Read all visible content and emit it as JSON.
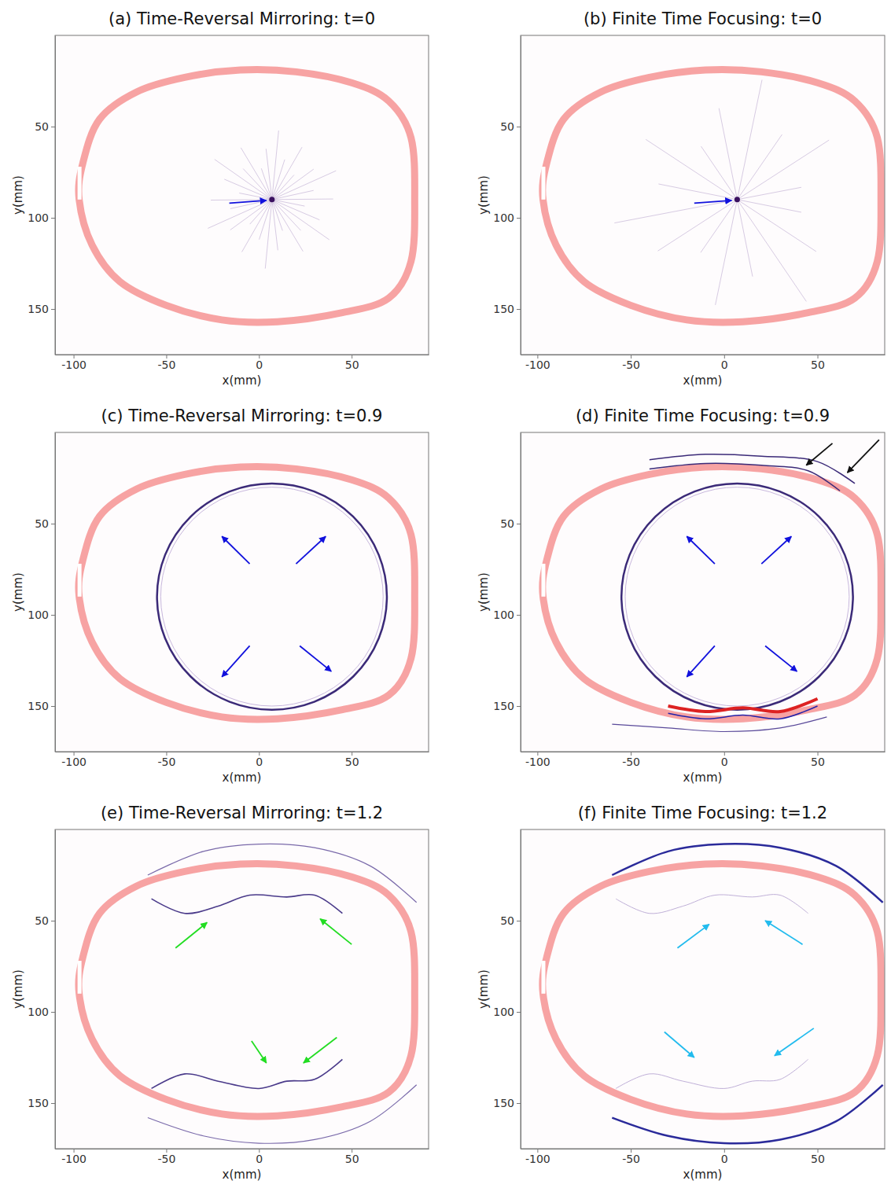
{
  "chart_data": [
    {
      "type": "image",
      "title": "(a) Time-Reversal Mirroring: t=0",
      "x_label": "x(mm)",
      "y_label": "y(mm)",
      "xlim": [
        -110,
        91.5
      ],
      "ylim": [
        175,
        0
      ],
      "xticks": [
        -100,
        -50,
        0,
        50
      ],
      "yticks": [
        50,
        100,
        150
      ]
    },
    {
      "type": "image",
      "title": "(b) Finite Time Focusing: t=0",
      "x_label": "x(mm)",
      "y_label": "y(mm)",
      "xlim": [
        -109,
        86
      ],
      "ylim": [
        175,
        0
      ],
      "xticks": [
        -100,
        -50,
        0,
        50
      ],
      "yticks": [
        50,
        100,
        150
      ]
    },
    {
      "type": "image",
      "title": "(c) Time-Reversal Mirroring: t=0.9",
      "x_label": "x(mm)",
      "y_label": "y(mm)",
      "xlim": [
        -110,
        91.5
      ],
      "ylim": [
        175,
        0
      ],
      "xticks": [
        -100,
        -50,
        0,
        50
      ],
      "yticks": [
        50,
        100,
        150
      ]
    },
    {
      "type": "image",
      "title": "(d) Finite Time Focusing: t=0.9",
      "x_label": "x(mm)",
      "y_label": "y(mm)",
      "xlim": [
        -109,
        86
      ],
      "ylim": [
        175,
        0
      ],
      "xticks": [
        -100,
        -50,
        0,
        50
      ],
      "yticks": [
        50,
        100,
        150
      ]
    },
    {
      "type": "image",
      "title": "(e) Time-Reversal Mirroring: t=1.2",
      "x_label": "x(mm)",
      "y_label": "y(mm)",
      "xlim": [
        -110,
        91.5
      ],
      "ylim": [
        175,
        0
      ],
      "xticks": [
        -100,
        -50,
        0,
        50
      ],
      "yticks": [
        50,
        100,
        150
      ]
    },
    {
      "type": "image",
      "title": "(f) Finite Time Focusing: t=1.2",
      "x_label": "x(mm)",
      "y_label": "y(mm)",
      "xlim": [
        -109,
        86
      ],
      "ylim": [
        175,
        0
      ],
      "xticks": [
        -100,
        -50,
        0,
        50
      ],
      "yticks": [
        50,
        100,
        150
      ]
    }
  ]
}
